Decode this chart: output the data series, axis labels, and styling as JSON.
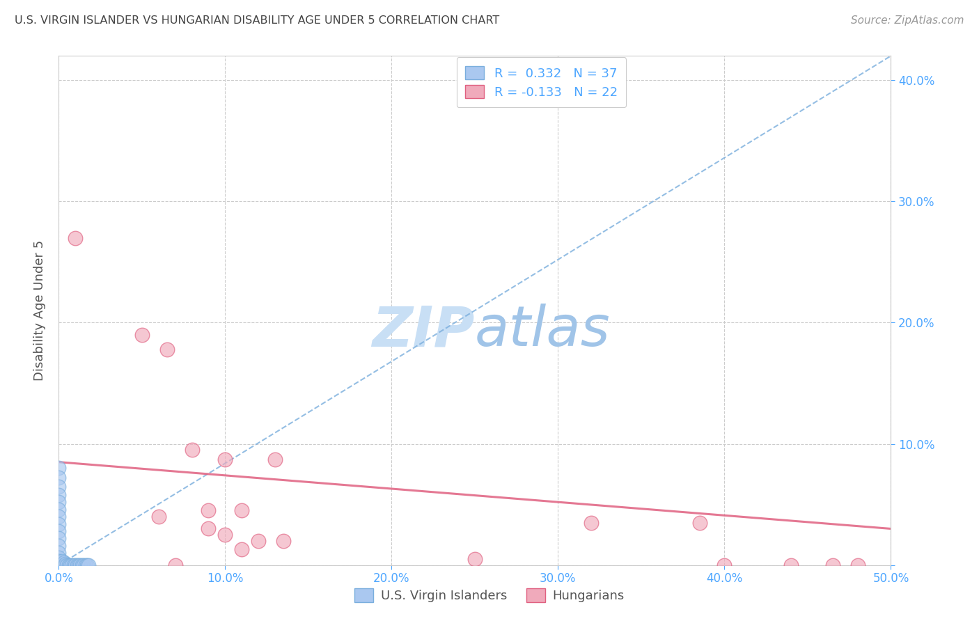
{
  "title": "U.S. VIRGIN ISLANDER VS HUNGARIAN DISABILITY AGE UNDER 5 CORRELATION CHART",
  "source": "Source: ZipAtlas.com",
  "ylabel": "Disability Age Under 5",
  "xlim": [
    0.0,
    0.5
  ],
  "ylim": [
    0.0,
    0.42
  ],
  "xticks": [
    0.0,
    0.1,
    0.2,
    0.3,
    0.4,
    0.5
  ],
  "yticks": [
    0.0,
    0.1,
    0.2,
    0.3,
    0.4
  ],
  "ytick_labels_right": [
    "",
    "10.0%",
    "20.0%",
    "30.0%",
    "40.0%"
  ],
  "xtick_labels": [
    "0.0%",
    "10.0%",
    "20.0%",
    "30.0%",
    "40.0%",
    "50.0%"
  ],
  "blue_R": 0.332,
  "blue_N": 37,
  "pink_R": -0.133,
  "pink_N": 22,
  "blue_color": "#aac8f0",
  "pink_color": "#f0aabb",
  "trend_blue_color": "#7aaedd",
  "trend_pink_color": "#e06080",
  "grid_color": "#cccccc",
  "watermark_zip_color": "#c8dff5",
  "watermark_atlas_color": "#a0c4e8",
  "blue_points": [
    [
      0.0,
      0.08
    ],
    [
      0.0,
      0.072
    ],
    [
      0.0,
      0.065
    ],
    [
      0.0,
      0.058
    ],
    [
      0.0,
      0.052
    ],
    [
      0.0,
      0.046
    ],
    [
      0.0,
      0.04
    ],
    [
      0.0,
      0.034
    ],
    [
      0.0,
      0.028
    ],
    [
      0.0,
      0.022
    ],
    [
      0.0,
      0.016
    ],
    [
      0.0,
      0.01
    ],
    [
      0.0,
      0.006
    ],
    [
      0.0,
      0.003
    ],
    [
      0.0,
      0.001
    ],
    [
      0.001,
      0.0
    ],
    [
      0.001,
      0.002
    ],
    [
      0.002,
      0.0
    ],
    [
      0.002,
      0.003
    ],
    [
      0.003,
      0.0
    ],
    [
      0.003,
      0.002
    ],
    [
      0.004,
      0.0
    ],
    [
      0.004,
      0.001
    ],
    [
      0.005,
      0.0
    ],
    [
      0.006,
      0.0
    ],
    [
      0.007,
      0.0
    ],
    [
      0.008,
      0.0
    ],
    [
      0.009,
      0.0
    ],
    [
      0.01,
      0.0
    ],
    [
      0.011,
      0.0
    ],
    [
      0.012,
      0.0
    ],
    [
      0.013,
      0.0
    ],
    [
      0.014,
      0.0
    ],
    [
      0.015,
      0.0
    ],
    [
      0.016,
      0.0
    ],
    [
      0.017,
      0.0
    ],
    [
      0.018,
      0.0
    ]
  ],
  "pink_points": [
    [
      0.01,
      0.27
    ],
    [
      0.05,
      0.19
    ],
    [
      0.065,
      0.178
    ],
    [
      0.08,
      0.095
    ],
    [
      0.1,
      0.087
    ],
    [
      0.13,
      0.087
    ],
    [
      0.07,
      0.0
    ],
    [
      0.09,
      0.045
    ],
    [
      0.11,
      0.045
    ],
    [
      0.06,
      0.04
    ],
    [
      0.09,
      0.03
    ],
    [
      0.1,
      0.025
    ],
    [
      0.12,
      0.02
    ],
    [
      0.135,
      0.02
    ],
    [
      0.11,
      0.013
    ],
    [
      0.25,
      0.005
    ],
    [
      0.32,
      0.035
    ],
    [
      0.385,
      0.035
    ],
    [
      0.4,
      0.0
    ],
    [
      0.44,
      0.0
    ],
    [
      0.465,
      0.0
    ],
    [
      0.48,
      0.0
    ]
  ],
  "blue_trend_x": [
    0.0,
    0.5
  ],
  "blue_trend_y": [
    0.0,
    0.42
  ],
  "pink_trend_x": [
    0.0,
    0.5
  ],
  "pink_trend_y": [
    0.085,
    0.03
  ],
  "background_color": "#ffffff",
  "tick_color": "#4da6ff",
  "label_color": "#555555",
  "title_color": "#444444",
  "source_color": "#999999"
}
